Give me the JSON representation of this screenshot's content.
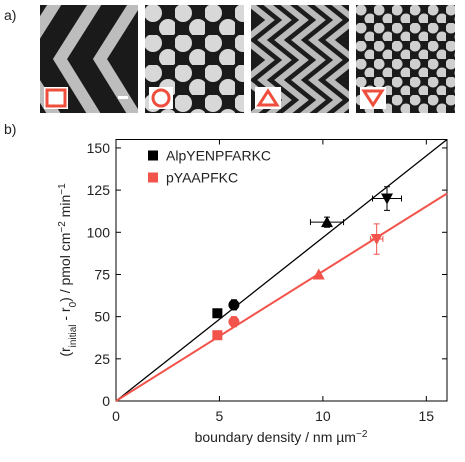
{
  "panels": {
    "a": {
      "label": "a)"
    },
    "b": {
      "label": "b)"
    }
  },
  "chart_data": {
    "type": "scatter",
    "xlabel": [
      {
        "text": "boundary density / nm µm",
        "shift": "base"
      },
      {
        "text": "−2",
        "shift": "super"
      }
    ],
    "ylabel": [
      {
        "text": "(r",
        "shift": "base"
      },
      {
        "text": "initial",
        "shift": "sub"
      },
      {
        "text": " - r",
        "shift": "base"
      },
      {
        "text": "0",
        "shift": "sub"
      },
      {
        "text": ") / pmol cm",
        "shift": "base"
      },
      {
        "text": "−2",
        "shift": "super"
      },
      {
        "text": " min",
        "shift": "base"
      },
      {
        "text": "−1",
        "shift": "super"
      }
    ],
    "xlim": [
      0,
      16
    ],
    "ylim": [
      0,
      155
    ],
    "xticks": [
      0,
      5,
      10,
      15
    ],
    "yticks": [
      0,
      25,
      50,
      75,
      100,
      125,
      150
    ],
    "legend": "upper left",
    "series": [
      {
        "name": "AlpYENPFARKC",
        "color": "#000000",
        "markers": [
          "square",
          "circle",
          "triangle-up",
          "triangle-down"
        ],
        "x": [
          4.9,
          5.7,
          10.2,
          13.1
        ],
        "values": [
          52,
          57,
          106,
          120
        ],
        "yerr": [
          null,
          3,
          3,
          7
        ],
        "xerr": [
          null,
          null,
          0.8,
          0.7
        ],
        "fit_x": [
          0,
          16
        ],
        "fit_values": [
          0,
          155
        ]
      },
      {
        "name": "pYAAPFKC",
        "color": "#f2544b",
        "markers": [
          "square",
          "circle",
          "triangle-up",
          "triangle-down"
        ],
        "x": [
          4.9,
          5.7,
          9.8,
          12.6
        ],
        "values": [
          39,
          47,
          75,
          96
        ],
        "yerr": [
          null,
          3,
          null,
          9
        ],
        "xerr": [
          null,
          null,
          null,
          0.3
        ],
        "fit_x": [
          0,
          16
        ],
        "fit_values": [
          0,
          123
        ]
      }
    ]
  }
}
